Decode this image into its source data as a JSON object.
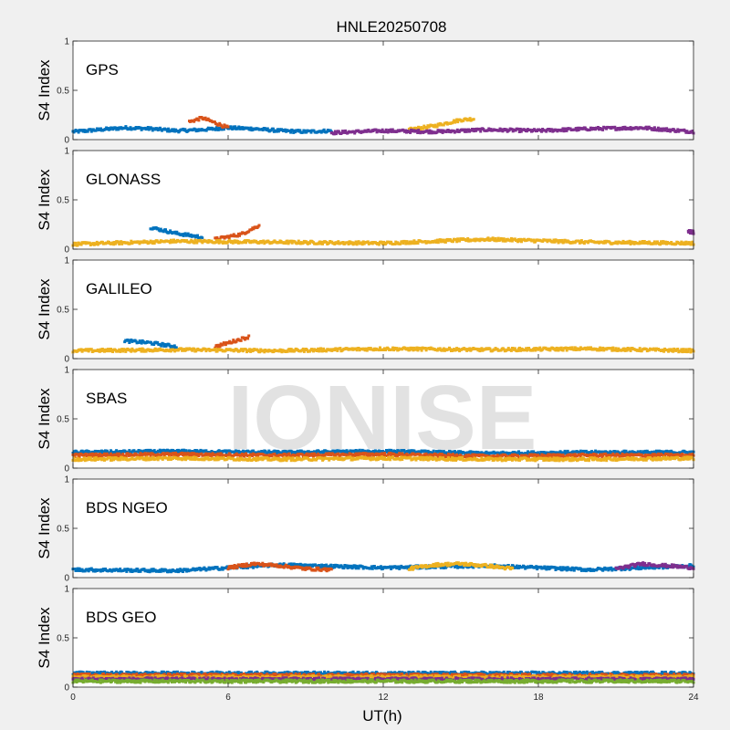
{
  "figure": {
    "title": "HNLE20250708",
    "watermark": "IONISE"
  },
  "chart_data": {
    "type": "scatter",
    "title": "HNLE20250708",
    "xlabel": "UT(h)",
    "ylabel": "S4 Index",
    "xlim": [
      0,
      24
    ],
    "ylim": [
      0,
      1
    ],
    "xticks": [
      0,
      6,
      12,
      18,
      24
    ],
    "yticks": [
      0,
      0.5,
      1
    ],
    "colors": [
      "#0072BD",
      "#D95319",
      "#EDB120",
      "#7E2F8E",
      "#77AC30",
      "#4DBEEE",
      "#A2142F"
    ],
    "panels": [
      {
        "label": "GPS",
        "series_approx": [
          {
            "x": [
              0,
              1,
              2,
              3,
              4,
              5,
              6,
              7,
              8,
              9,
              10
            ],
            "y": [
              0.08,
              0.1,
              0.12,
              0.11,
              0.09,
              0.1,
              0.12,
              0.11,
              0.09,
              0.08,
              0.09
            ]
          },
          {
            "x": [
              4.5,
              5,
              5.5,
              6
            ],
            "y": [
              0.18,
              0.22,
              0.17,
              0.12
            ]
          },
          {
            "x": [
              13,
              14,
              15,
              15.5
            ],
            "y": [
              0.1,
              0.14,
              0.2,
              0.21
            ]
          },
          {
            "x": [
              10,
              12,
              14,
              16,
              18,
              20,
              22,
              24
            ],
            "y": [
              0.07,
              0.09,
              0.08,
              0.1,
              0.09,
              0.11,
              0.12,
              0.08
            ]
          }
        ]
      },
      {
        "label": "GLONASS",
        "series_approx": [
          {
            "x": [
              3,
              4,
              5
            ],
            "y": [
              0.22,
              0.16,
              0.12
            ]
          },
          {
            "x": [
              5.5,
              6.5,
              7.2
            ],
            "y": [
              0.1,
              0.15,
              0.24
            ]
          },
          {
            "x": [
              0,
              4,
              8,
              12,
              16,
              20,
              24
            ],
            "y": [
              0.05,
              0.08,
              0.07,
              0.06,
              0.1,
              0.07,
              0.06
            ]
          },
          {
            "x": [
              23.8,
              24
            ],
            "y": [
              0.18,
              0.17
            ]
          }
        ]
      },
      {
        "label": "GALILEO",
        "series_approx": [
          {
            "x": [
              2,
              3,
              4
            ],
            "y": [
              0.18,
              0.16,
              0.12
            ]
          },
          {
            "x": [
              5.5,
              6,
              6.8
            ],
            "y": [
              0.12,
              0.16,
              0.22
            ]
          },
          {
            "x": [
              0,
              4,
              8,
              12,
              16,
              20,
              24
            ],
            "y": [
              0.08,
              0.09,
              0.08,
              0.1,
              0.09,
              0.1,
              0.08
            ]
          }
        ]
      },
      {
        "label": "SBAS",
        "series_approx": [
          {
            "x": [
              0,
              4,
              8,
              12,
              16,
              20,
              24
            ],
            "y": [
              0.16,
              0.17,
              0.16,
              0.17,
              0.15,
              0.16,
              0.16
            ]
          },
          {
            "x": [
              0,
              4,
              8,
              12,
              16,
              20,
              24
            ],
            "y": [
              0.13,
              0.14,
              0.13,
              0.14,
              0.12,
              0.13,
              0.13
            ]
          },
          {
            "x": [
              0,
              4,
              8,
              12,
              16,
              20,
              24
            ],
            "y": [
              0.09,
              0.1,
              0.09,
              0.1,
              0.09,
              0.09,
              0.1
            ]
          }
        ]
      },
      {
        "label": "BDS NGEO",
        "series_approx": [
          {
            "x": [
              0,
              4,
              8,
              12,
              16,
              20,
              24
            ],
            "y": [
              0.08,
              0.07,
              0.13,
              0.1,
              0.12,
              0.08,
              0.12
            ]
          },
          {
            "x": [
              6,
              7,
              8,
              9,
              10
            ],
            "y": [
              0.1,
              0.14,
              0.12,
              0.09,
              0.08
            ]
          },
          {
            "x": [
              13,
              14,
              15,
              16,
              17
            ],
            "y": [
              0.09,
              0.13,
              0.14,
              0.12,
              0.09
            ]
          },
          {
            "x": [
              21,
              22,
              23,
              24
            ],
            "y": [
              0.09,
              0.14,
              0.12,
              0.1
            ]
          }
        ]
      },
      {
        "label": "BDS GEO",
        "series_approx": [
          {
            "x": [
              0,
              24
            ],
            "y": [
              0.14,
              0.14
            ]
          },
          {
            "x": [
              0,
              24
            ],
            "y": [
              0.12,
              0.12
            ]
          },
          {
            "x": [
              0,
              24
            ],
            "y": [
              0.1,
              0.1
            ]
          },
          {
            "x": [
              0,
              24
            ],
            "y": [
              0.08,
              0.08
            ]
          },
          {
            "x": [
              0,
              24
            ],
            "y": [
              0.06,
              0.06
            ]
          }
        ]
      }
    ]
  }
}
